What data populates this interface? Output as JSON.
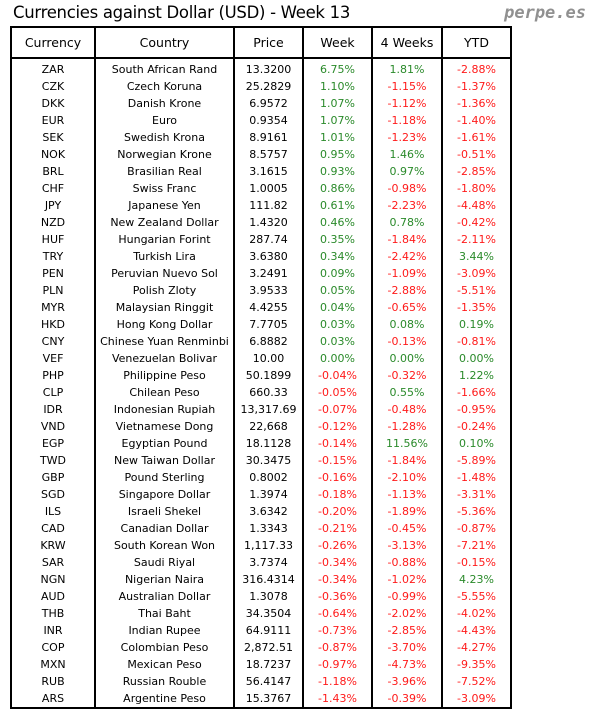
{
  "title": "Currencies against Dollar (USD) - Week 13",
  "brand": "perpe.es",
  "colors": {
    "positive": "#2a8a2a",
    "negative": "#ff1a1a"
  },
  "columns": [
    "Currency",
    "Country",
    "Price",
    "Week",
    "4 Weeks",
    "YTD"
  ],
  "rows": [
    [
      "ZAR",
      "South African Rand",
      "13.3200",
      "6.75%",
      "1.81%",
      "-2.88%"
    ],
    [
      "CZK",
      "Czech Koruna",
      "25.2829",
      "1.10%",
      "-1.15%",
      "-1.37%"
    ],
    [
      "DKK",
      "Danish Krone",
      "6.9572",
      "1.07%",
      "-1.12%",
      "-1.36%"
    ],
    [
      "EUR",
      "Euro",
      "0.9354",
      "1.07%",
      "-1.18%",
      "-1.40%"
    ],
    [
      "SEK",
      "Swedish Krona",
      "8.9161",
      "1.01%",
      "-1.23%",
      "-1.61%"
    ],
    [
      "NOK",
      "Norwegian Krone",
      "8.5757",
      "0.95%",
      "1.46%",
      "-0.51%"
    ],
    [
      "BRL",
      "Brasilian Real",
      "3.1615",
      "0.93%",
      "0.97%",
      "-2.85%"
    ],
    [
      "CHF",
      "Swiss Franc",
      "1.0005",
      "0.86%",
      "-0.98%",
      "-1.80%"
    ],
    [
      "JPY",
      "Japanese Yen",
      "111.82",
      "0.61%",
      "-2.23%",
      "-4.48%"
    ],
    [
      "NZD",
      "New Zealand Dollar",
      "1.4320",
      "0.46%",
      "0.78%",
      "-0.42%"
    ],
    [
      "HUF",
      "Hungarian Forint",
      "287.74",
      "0.35%",
      "-1.84%",
      "-2.11%"
    ],
    [
      "TRY",
      "Turkish Lira",
      "3.6380",
      "0.34%",
      "-2.42%",
      "3.44%"
    ],
    [
      "PEN",
      "Peruvian Nuevo Sol",
      "3.2491",
      "0.09%",
      "-1.09%",
      "-3.09%"
    ],
    [
      "PLN",
      "Polish Zloty",
      "3.9533",
      "0.05%",
      "-2.88%",
      "-5.51%"
    ],
    [
      "MYR",
      "Malaysian Ringgit",
      "4.4255",
      "0.04%",
      "-0.65%",
      "-1.35%"
    ],
    [
      "HKD",
      "Hong Kong Dollar",
      "7.7705",
      "0.03%",
      "0.08%",
      "0.19%"
    ],
    [
      "CNY",
      "Chinese Yuan Renminbi",
      "6.8882",
      "0.03%",
      "-0.13%",
      "-0.81%"
    ],
    [
      "VEF",
      "Venezuelan Bolivar",
      "10.00",
      "0.00%",
      "0.00%",
      "0.00%"
    ],
    [
      "PHP",
      "Philippine Peso",
      "50.1899",
      "-0.04%",
      "-0.32%",
      "1.22%"
    ],
    [
      "CLP",
      "Chilean Peso",
      "660.33",
      "-0.05%",
      "0.55%",
      "-1.66%"
    ],
    [
      "IDR",
      "Indonesian Rupiah",
      "13,317.69",
      "-0.07%",
      "-0.48%",
      "-0.95%"
    ],
    [
      "VND",
      "Vietnamese Dong",
      "22,668",
      "-0.12%",
      "-1.28%",
      "-0.24%"
    ],
    [
      "EGP",
      "Egyptian Pound",
      "18.1128",
      "-0.14%",
      "11.56%",
      "0.10%"
    ],
    [
      "TWD",
      "New Taiwan Dollar",
      "30.3475",
      "-0.15%",
      "-1.84%",
      "-5.89%"
    ],
    [
      "GBP",
      "Pound Sterling",
      "0.8002",
      "-0.16%",
      "-2.10%",
      "-1.48%"
    ],
    [
      "SGD",
      "Singapore Dollar",
      "1.3974",
      "-0.18%",
      "-1.13%",
      "-3.31%"
    ],
    [
      "ILS",
      "Israeli Shekel",
      "3.6342",
      "-0.20%",
      "-1.89%",
      "-5.36%"
    ],
    [
      "CAD",
      "Canadian Dollar",
      "1.3343",
      "-0.21%",
      "-0.45%",
      "-0.87%"
    ],
    [
      "KRW",
      "South Korean Won",
      "1,117.33",
      "-0.26%",
      "-3.13%",
      "-7.21%"
    ],
    [
      "SAR",
      "Saudi Riyal",
      "3.7374",
      "-0.34%",
      "-0.88%",
      "-0.15%"
    ],
    [
      "NGN",
      "Nigerian Naira",
      "316.4314",
      "-0.34%",
      "-1.02%",
      "4.23%"
    ],
    [
      "AUD",
      "Australian Dollar",
      "1.3078",
      "-0.36%",
      "-0.99%",
      "-5.55%"
    ],
    [
      "THB",
      "Thai Baht",
      "34.3504",
      "-0.64%",
      "-2.02%",
      "-4.02%"
    ],
    [
      "INR",
      "Indian Rupee",
      "64.9111",
      "-0.73%",
      "-2.85%",
      "-4.43%"
    ],
    [
      "COP",
      "Colombian Peso",
      "2,872.51",
      "-0.87%",
      "-3.70%",
      "-4.27%"
    ],
    [
      "MXN",
      "Mexican Peso",
      "18.7237",
      "-0.97%",
      "-4.73%",
      "-9.35%"
    ],
    [
      "RUB",
      "Russian Rouble",
      "56.4147",
      "-1.18%",
      "-3.96%",
      "-7.52%"
    ],
    [
      "ARS",
      "Argentine Peso",
      "15.3767",
      "-1.43%",
      "-0.39%",
      "-3.09%"
    ]
  ]
}
